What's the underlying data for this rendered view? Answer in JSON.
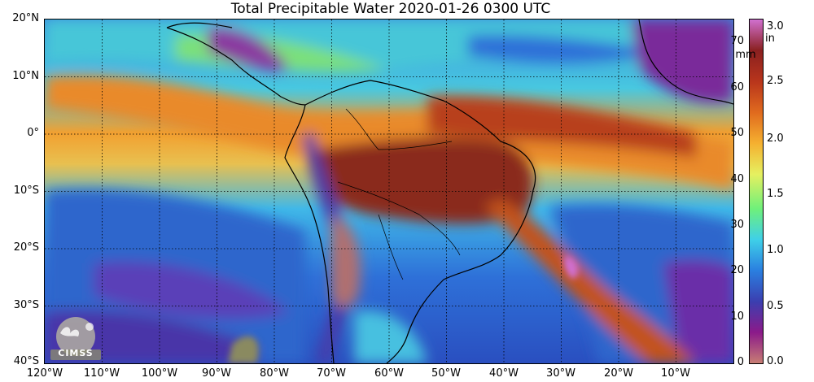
{
  "title": "Total Precipitable Water  2020-01-26 0300 UTC",
  "lat_labels": [
    "20°N",
    "10°N",
    "0°",
    "10°S",
    "20°S",
    "30°S",
    "40°S"
  ],
  "lon_labels": [
    "120°W",
    "110°W",
    "100°W",
    "90°W",
    "80°W",
    "70°W",
    "60°W",
    "50°W",
    "40°W",
    "30°W",
    "20°W",
    "10°W"
  ],
  "colorbar": {
    "mm_label": "mm",
    "in_label": "in",
    "mm_ticks": [
      "70",
      "60",
      "50",
      "40",
      "30",
      "20",
      "10",
      "0"
    ],
    "in_ticks": [
      "3.0",
      "2.5",
      "2.0",
      "1.5",
      "1.0",
      "0.5",
      "0.0"
    ],
    "colors": [
      "#c77d74",
      "#8b1a8a",
      "#3b3fb0",
      "#2a7fe0",
      "#3fd0e8",
      "#6ff07a",
      "#e6f060",
      "#f5b030",
      "#e06a1e",
      "#b8351c",
      "#8a2020",
      "#d070d0"
    ]
  },
  "logo": {
    "text": "CIMSS"
  }
}
